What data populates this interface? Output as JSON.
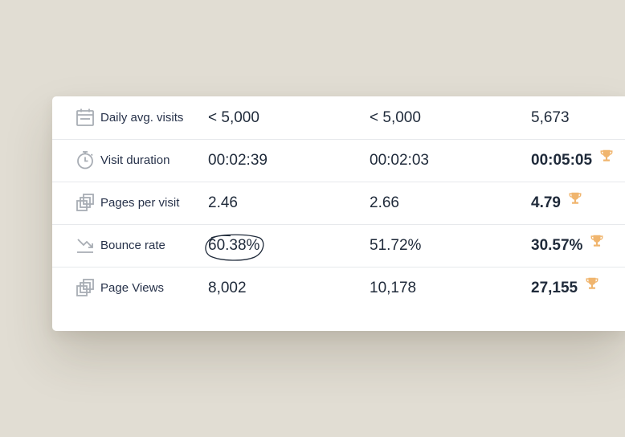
{
  "colors": {
    "background": "#e1ddd3",
    "card": "#ffffff",
    "text": "#1f2a3a",
    "icon": "#a8adb4",
    "trophy": "#f0b56e",
    "divider": "#e7e9ec"
  },
  "rows": [
    {
      "icon": "calendar-icon",
      "label": "Daily avg. visits",
      "values": [
        "< 5,000",
        "< 5,000",
        "5,673"
      ],
      "best": false
    },
    {
      "icon": "stopwatch-icon",
      "label": "Visit duration",
      "values": [
        "00:02:39",
        "00:02:03",
        "00:05:05"
      ],
      "best": true
    },
    {
      "icon": "pages-icon",
      "label": "Pages per visit",
      "values": [
        "2.46",
        "2.66",
        "4.79"
      ],
      "best": true
    },
    {
      "icon": "trend-arrow-icon",
      "label": "Bounce rate",
      "values": [
        "60.38%",
        "51.72%",
        "30.57%"
      ],
      "best": true,
      "circled_value": "60.38%"
    },
    {
      "icon": "pages-icon",
      "label": "Page Views",
      "values": [
        "8,002",
        "10,178",
        "27,155"
      ],
      "best": true
    }
  ]
}
